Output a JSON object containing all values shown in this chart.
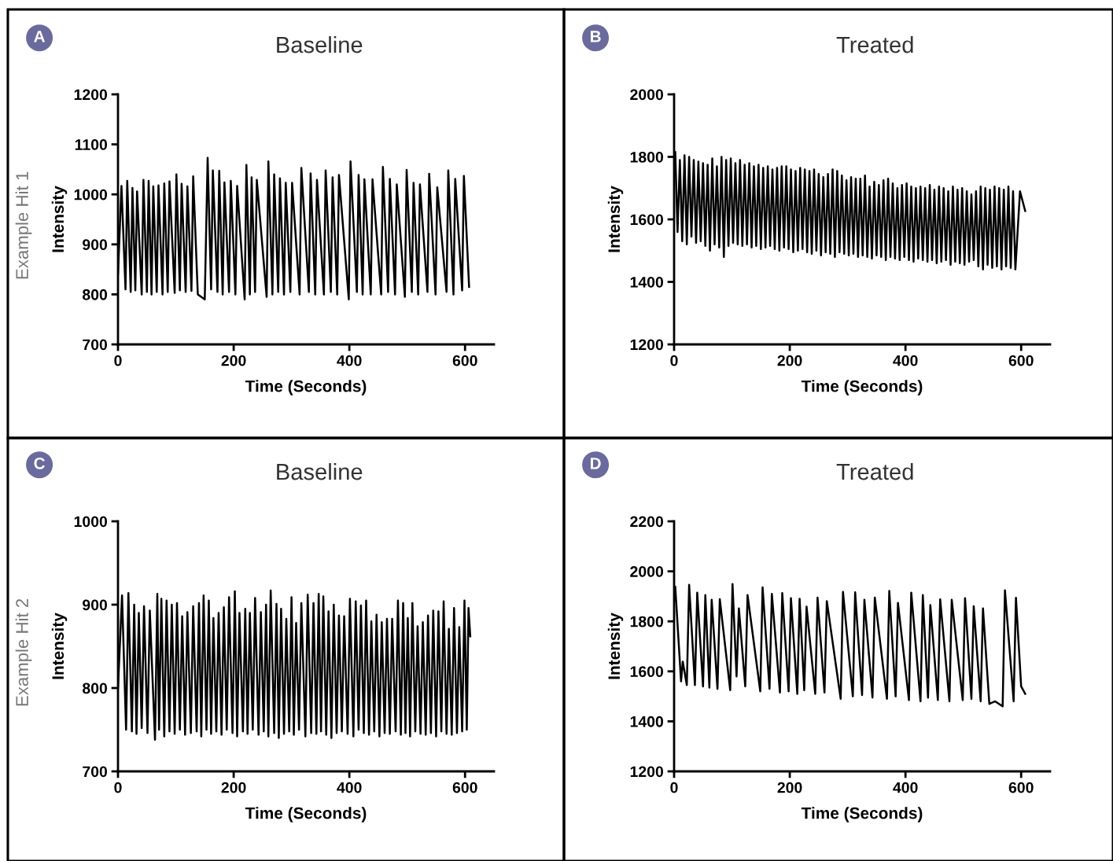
{
  "chart_data": [
    {
      "type": "line",
      "title": "Baseline",
      "xlabel": "Time (Seconds)",
      "ylabel": "Intensity",
      "annotations": [
        "A",
        "Example Hit 1"
      ],
      "xlim": [
        0,
        650
      ],
      "ylim": [
        700,
        1200
      ],
      "xticks": [
        0,
        200,
        400,
        600
      ],
      "yticks": [
        700,
        800,
        900,
        1000,
        1100,
        1200
      ],
      "line_style": "solid",
      "series": [
        {
          "color": "#000000",
          "x": [
            0,
            6,
            13,
            16,
            22,
            25,
            30,
            33,
            41,
            44,
            50,
            53,
            58,
            61,
            67,
            70,
            77,
            80,
            86,
            89,
            98,
            101,
            107,
            110,
            117,
            120,
            127,
            130,
            138,
            150,
            155,
            161,
            164,
            172,
            175,
            181,
            184,
            192,
            195,
            203,
            206,
            219,
            222,
            228,
            231,
            237,
            240,
            257,
            260,
            267,
            270,
            277,
            280,
            287,
            290,
            298,
            301,
            314,
            317,
            330,
            333,
            341,
            344,
            356,
            359,
            368,
            371,
            379,
            382,
            399,
            402,
            413,
            416,
            423,
            426,
            437,
            440,
            455,
            458,
            467,
            470,
            479,
            482,
            496,
            499,
            508,
            511,
            519,
            522,
            535,
            538,
            549,
            552,
            568,
            571,
            580,
            583,
            595,
            598,
            607
          ],
          "values": [
            840,
            1017,
            810,
            1027,
            805,
            1013,
            808,
            1006,
            800,
            1029,
            805,
            1027,
            800,
            1016,
            805,
            1018,
            800,
            1022,
            805,
            1026,
            803,
            1040,
            808,
            1021,
            805,
            1016,
            807,
            1036,
            800,
            790,
            1073,
            810,
            1048,
            805,
            1047,
            800,
            1024,
            805,
            1027,
            800,
            1017,
            790,
            1059,
            800,
            1034,
            805,
            1029,
            795,
            1066,
            800,
            1040,
            805,
            1032,
            800,
            1023,
            805,
            1023,
            800,
            1053,
            805,
            1042,
            800,
            1029,
            800,
            1048,
            805,
            1034,
            800,
            1039,
            790,
            1066,
            805,
            1039,
            800,
            1030,
            800,
            1030,
            800,
            1055,
            805,
            1031,
            800,
            1020,
            795,
            1049,
            805,
            1023,
            800,
            1020,
            805,
            1041,
            800,
            1014,
            805,
            1048,
            800,
            1031,
            808,
            1037,
            815
          ]
        }
      ]
    },
    {
      "type": "line",
      "title": "Treated",
      "xlabel": "Time (Seconds)",
      "ylabel": "Intensity",
      "annotations": [
        "B"
      ],
      "xlim": [
        0,
        650
      ],
      "ylim": [
        1200,
        2000
      ],
      "xticks": [
        0,
        200,
        400,
        600
      ],
      "yticks": [
        1200,
        1400,
        1600,
        1800,
        2000
      ],
      "line_style": "solid",
      "series": [
        {
          "color": "#000000",
          "x": [
            2,
            6,
            10,
            14,
            18,
            22,
            26,
            30,
            34,
            38,
            42,
            46,
            50,
            54,
            58,
            62,
            66,
            70,
            74,
            78,
            82,
            86,
            90,
            94,
            98,
            102,
            106,
            110,
            114,
            118,
            122,
            126,
            130,
            134,
            138,
            142,
            146,
            150,
            154,
            158,
            162,
            166,
            170,
            174,
            178,
            182,
            186,
            190,
            194,
            198,
            202,
            206,
            210,
            214,
            218,
            222,
            226,
            230,
            234,
            238,
            242,
            246,
            250,
            254,
            258,
            262,
            266,
            270,
            274,
            278,
            282,
            286,
            290,
            294,
            298,
            302,
            306,
            310,
            314,
            318,
            322,
            326,
            330,
            334,
            338,
            342,
            346,
            350,
            354,
            358,
            362,
            366,
            370,
            374,
            378,
            382,
            386,
            390,
            394,
            398,
            402,
            406,
            410,
            414,
            418,
            422,
            426,
            430,
            434,
            438,
            442,
            446,
            450,
            454,
            458,
            462,
            466,
            470,
            474,
            478,
            482,
            486,
            490,
            494,
            498,
            502,
            506,
            510,
            514,
            518,
            522,
            526,
            530,
            534,
            538,
            542,
            546,
            550,
            554,
            558,
            562,
            566,
            570,
            574,
            578,
            582,
            586,
            590,
            598,
            607
          ],
          "values": [
            1815,
            1560,
            1790,
            1530,
            1805,
            1520,
            1800,
            1545,
            1790,
            1525,
            1785,
            1530,
            1780,
            1515,
            1775,
            1500,
            1795,
            1520,
            1770,
            1510,
            1800,
            1480,
            1790,
            1515,
            1795,
            1525,
            1780,
            1520,
            1790,
            1515,
            1775,
            1520,
            1780,
            1510,
            1770,
            1515,
            1775,
            1505,
            1765,
            1510,
            1770,
            1515,
            1760,
            1505,
            1765,
            1500,
            1770,
            1510,
            1770,
            1505,
            1760,
            1495,
            1755,
            1500,
            1765,
            1505,
            1760,
            1495,
            1755,
            1490,
            1760,
            1500,
            1745,
            1485,
            1735,
            1495,
            1745,
            1490,
            1760,
            1480,
            1755,
            1495,
            1740,
            1490,
            1725,
            1485,
            1735,
            1490,
            1730,
            1480,
            1730,
            1485,
            1740,
            1480,
            1705,
            1475,
            1720,
            1485,
            1710,
            1480,
            1725,
            1470,
            1730,
            1480,
            1715,
            1475,
            1700,
            1470,
            1710,
            1480,
            1715,
            1470,
            1705,
            1465,
            1700,
            1475,
            1705,
            1470,
            1700,
            1465,
            1710,
            1470,
            1695,
            1460,
            1705,
            1465,
            1700,
            1470,
            1690,
            1455,
            1705,
            1465,
            1695,
            1460,
            1700,
            1455,
            1690,
            1465,
            1680,
            1470,
            1690,
            1450,
            1705,
            1440,
            1700,
            1455,
            1695,
            1445,
            1705,
            1450,
            1700,
            1440,
            1695,
            1450,
            1705,
            1445,
            1690,
            1440,
            1690,
            1627
          ]
        }
      ]
    },
    {
      "type": "line",
      "title": "Baseline",
      "xlabel": "Time (Seconds)",
      "ylabel": "Intensity",
      "annotations": [
        "C",
        "Example Hit 2"
      ],
      "xlim": [
        0,
        650
      ],
      "ylim": [
        700,
        1000
      ],
      "xticks": [
        0,
        200,
        400,
        600
      ],
      "yticks": [
        700,
        800,
        900,
        1000
      ],
      "line_style": "solid",
      "series": [
        {
          "color": "#000000",
          "x": [
            0,
            7,
            14,
            18,
            24,
            28,
            32,
            36,
            41,
            45,
            51,
            55,
            64,
            68,
            71,
            75,
            80,
            84,
            89,
            93,
            98,
            102,
            107,
            111,
            116,
            120,
            126,
            130,
            136,
            140,
            144,
            148,
            153,
            157,
            161,
            165,
            170,
            174,
            179,
            183,
            188,
            192,
            198,
            202,
            206,
            210,
            216,
            220,
            224,
            228,
            233,
            237,
            243,
            247,
            252,
            256,
            260,
            264,
            270,
            274,
            278,
            282,
            287,
            291,
            296,
            300,
            304,
            308,
            313,
            317,
            324,
            328,
            334,
            338,
            343,
            347,
            351,
            355,
            360,
            364,
            369,
            373,
            378,
            382,
            387,
            391,
            397,
            401,
            407,
            411,
            416,
            420,
            425,
            429,
            434,
            438,
            443,
            447,
            452,
            456,
            461,
            465,
            470,
            474,
            480,
            484,
            489,
            493,
            497,
            501,
            505,
            509,
            514,
            518,
            523,
            527,
            532,
            536,
            541,
            545,
            550,
            554,
            559,
            563,
            568,
            572,
            577,
            581,
            586,
            590,
            595,
            599,
            603,
            606,
            609
          ],
          "values": [
            800,
            911,
            750,
            914,
            748,
            900,
            745,
            890,
            752,
            898,
            746,
            893,
            738,
            913,
            750,
            907,
            742,
            905,
            748,
            900,
            745,
            902,
            750,
            886,
            744,
            891,
            746,
            898,
            748,
            902,
            742,
            911,
            750,
            905,
            745,
            884,
            748,
            890,
            744,
            897,
            750,
            909,
            746,
            916,
            742,
            890,
            748,
            895,
            745,
            890,
            750,
            908,
            744,
            891,
            748,
            900,
            742,
            917,
            746,
            901,
            740,
            895,
            745,
            883,
            748,
            909,
            744,
            878,
            750,
            902,
            742,
            912,
            746,
            902,
            745,
            913,
            748,
            910,
            744,
            892,
            740,
            900,
            746,
            887,
            748,
            886,
            745,
            907,
            742,
            904,
            750,
            899,
            746,
            905,
            744,
            880,
            748,
            888,
            742,
            879,
            746,
            883,
            745,
            883,
            748,
            905,
            744,
            902,
            746,
            884,
            742,
            902,
            748,
            874,
            745,
            879,
            744,
            887,
            746,
            893,
            742,
            892,
            748,
            904,
            745,
            871,
            744,
            896,
            746,
            873,
            748,
            905,
            750,
            896,
            862
          ]
        }
      ]
    },
    {
      "type": "line",
      "title": "Treated",
      "xlabel": "Time (Seconds)",
      "ylabel": "Intensity",
      "annotations": [
        "D"
      ],
      "xlim": [
        0,
        650
      ],
      "ylim": [
        1200,
        2200
      ],
      "xticks": [
        0,
        200,
        400,
        600
      ],
      "yticks": [
        1200,
        1400,
        1600,
        1800,
        2000,
        2200
      ],
      "line_style": "solid",
      "series": [
        {
          "color": "#000000",
          "x": [
            0,
            2,
            12,
            15,
            22,
            26,
            36,
            40,
            50,
            54,
            61,
            65,
            75,
            79,
            97,
            101,
            108,
            112,
            123,
            127,
            149,
            153,
            165,
            169,
            183,
            187,
            198,
            202,
            213,
            217,
            225,
            229,
            244,
            248,
            260,
            264,
            288,
            292,
            309,
            313,
            325,
            329,
            343,
            347,
            368,
            372,
            383,
            387,
            406,
            410,
            426,
            430,
            439,
            443,
            456,
            460,
            476,
            480,
            499,
            503,
            514,
            518,
            530,
            534,
            545,
            555,
            568,
            572,
            587,
            591,
            600,
            607
          ],
          "values": [
            1880,
            1939,
            1560,
            1639,
            1545,
            1946,
            1545,
            1915,
            1540,
            1905,
            1535,
            1886,
            1530,
            1889,
            1525,
            1949,
            1580,
            1852,
            1540,
            1905,
            1520,
            1936,
            1530,
            1910,
            1515,
            1913,
            1520,
            1893,
            1510,
            1890,
            1525,
            1859,
            1510,
            1895,
            1515,
            1881,
            1490,
            1918,
            1500,
            1916,
            1505,
            1886,
            1495,
            1895,
            1490,
            1922,
            1500,
            1874,
            1485,
            1915,
            1480,
            1905,
            1495,
            1865,
            1485,
            1888,
            1480,
            1886,
            1485,
            1893,
            1490,
            1860,
            1480,
            1852,
            1470,
            1480,
            1460,
            1924,
            1480,
            1894,
            1540,
            1510
          ]
        }
      ]
    }
  ]
}
